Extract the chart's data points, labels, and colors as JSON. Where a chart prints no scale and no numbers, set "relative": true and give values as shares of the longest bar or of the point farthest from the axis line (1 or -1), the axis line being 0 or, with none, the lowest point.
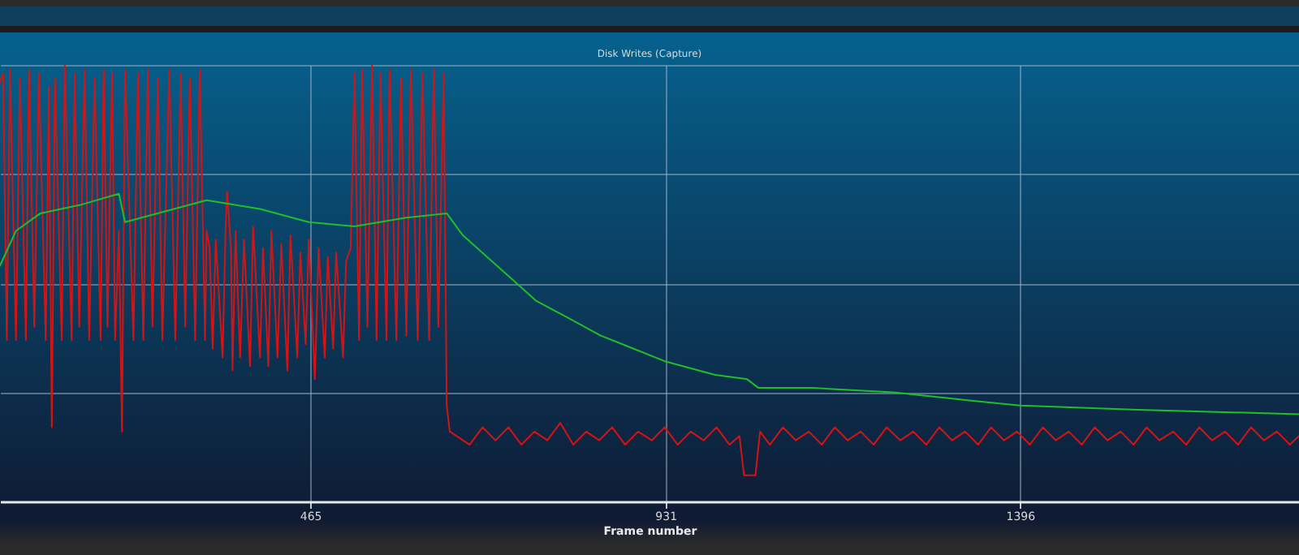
{
  "chart_data": {
    "type": "line",
    "title": "Disk Writes (Capture)",
    "xlabel": "Frame number",
    "relative": true,
    "xlim": [
      58,
      1762
    ],
    "xticks": [
      465,
      931,
      1396
    ],
    "grid": true,
    "legend": false,
    "line_style": "solid",
    "marker": "none",
    "series": [
      {
        "color": "#d41414",
        "x": [
          58,
          62,
          67,
          71,
          79,
          84,
          92,
          96,
          103,
          109,
          118,
          122,
          126,
          130,
          139,
          143,
          152,
          156,
          162,
          169,
          175,
          182,
          190,
          194,
          199,
          205,
          209,
          214,
          218,
          222,
          233,
          239,
          246,
          252,
          258,
          265,
          271,
          280,
          288,
          295,
          301,
          307,
          314,
          320,
          327,
          329,
          333,
          337,
          341,
          350,
          354,
          356,
          361,
          363,
          367,
          373,
          378,
          386,
          390,
          399,
          403,
          410,
          414,
          422,
          427,
          435,
          439,
          448,
          452,
          459,
          463,
          471,
          476,
          484,
          488,
          495,
          499,
          508,
          512,
          518,
          523,
          529,
          533,
          540,
          546,
          552,
          557,
          565,
          569,
          578,
          584,
          591,
          597,
          606,
          612,
          621,
          627,
          633,
          640,
          644,
          648,
          657,
          674,
          691,
          708,
          725,
          742,
          759,
          776,
          793,
          810,
          827,
          844,
          861,
          878,
          895,
          913,
          930,
          947,
          964,
          981,
          998,
          1015,
          1028,
          1034,
          1049,
          1055,
          1068,
          1085,
          1102,
          1119,
          1136,
          1153,
          1170,
          1187,
          1204,
          1221,
          1239,
          1256,
          1273,
          1290,
          1307,
          1324,
          1341,
          1358,
          1375,
          1392,
          1409,
          1426,
          1443,
          1460,
          1477,
          1494,
          1511,
          1528,
          1545,
          1562,
          1579,
          1597,
          1614,
          1631,
          1648,
          1665,
          1682,
          1699,
          1716,
          1733,
          1750,
          1762
        ],
        "values": [
          0.96,
          0.98,
          0.37,
          0.99,
          0.37,
          0.97,
          0.37,
          0.99,
          0.4,
          0.98,
          0.37,
          0.95,
          0.17,
          0.97,
          0.37,
          1.0,
          0.37,
          0.98,
          0.4,
          0.99,
          0.37,
          0.97,
          0.37,
          0.99,
          0.4,
          0.98,
          0.37,
          0.62,
          0.16,
          0.99,
          0.37,
          0.98,
          0.37,
          0.99,
          0.4,
          0.97,
          0.37,
          0.99,
          0.37,
          0.98,
          0.4,
          0.97,
          0.37,
          0.99,
          0.37,
          0.62,
          0.58,
          0.35,
          0.6,
          0.33,
          0.63,
          0.71,
          0.58,
          0.3,
          0.62,
          0.33,
          0.6,
          0.31,
          0.63,
          0.33,
          0.58,
          0.31,
          0.62,
          0.33,
          0.59,
          0.3,
          0.61,
          0.33,
          0.57,
          0.36,
          0.6,
          0.28,
          0.58,
          0.33,
          0.56,
          0.35,
          0.57,
          0.33,
          0.55,
          0.58,
          0.98,
          0.37,
          0.99,
          0.4,
          1.0,
          0.37,
          0.98,
          0.37,
          0.99,
          0.37,
          0.97,
          0.38,
          0.99,
          0.37,
          0.98,
          0.37,
          0.99,
          0.4,
          0.98,
          0.22,
          0.16,
          0.15,
          0.13,
          0.17,
          0.14,
          0.17,
          0.13,
          0.16,
          0.14,
          0.18,
          0.13,
          0.16,
          0.14,
          0.17,
          0.13,
          0.16,
          0.14,
          0.17,
          0.13,
          0.16,
          0.14,
          0.17,
          0.13,
          0.15,
          0.06,
          0.06,
          0.16,
          0.13,
          0.17,
          0.14,
          0.16,
          0.13,
          0.17,
          0.14,
          0.16,
          0.13,
          0.17,
          0.14,
          0.16,
          0.13,
          0.17,
          0.14,
          0.16,
          0.13,
          0.17,
          0.14,
          0.16,
          0.13,
          0.17,
          0.14,
          0.16,
          0.13,
          0.17,
          0.14,
          0.16,
          0.13,
          0.17,
          0.14,
          0.16,
          0.13,
          0.17,
          0.14,
          0.16,
          0.13,
          0.17,
          0.14,
          0.16,
          0.13,
          0.15
        ]
      },
      {
        "color": "#1fbf2a",
        "x": [
          58,
          79,
          111,
          165,
          214,
          222,
          329,
          399,
          463,
          523,
          591,
          644,
          665,
          697,
          729,
          761,
          804,
          846,
          889,
          932,
          996,
          1038,
          1053,
          1124,
          1230,
          1337,
          1396,
          1550,
          1762
        ],
        "values": [
          0.54,
          0.62,
          0.66,
          0.68,
          0.705,
          0.64,
          0.69,
          0.67,
          0.64,
          0.63,
          0.65,
          0.66,
          0.61,
          0.56,
          0.51,
          0.46,
          0.42,
          0.38,
          0.35,
          0.32,
          0.29,
          0.28,
          0.26,
          0.26,
          0.25,
          0.23,
          0.22,
          0.21,
          0.2
        ]
      }
    ]
  }
}
